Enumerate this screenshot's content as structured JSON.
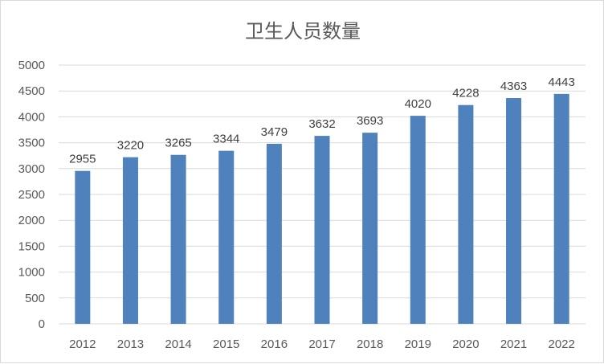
{
  "chart_data": {
    "type": "bar",
    "title": "卫生人员数量",
    "categories": [
      "2012",
      "2013",
      "2014",
      "2015",
      "2016",
      "2017",
      "2018",
      "2019",
      "2020",
      "2021",
      "2022"
    ],
    "values": [
      2955,
      3220,
      3265,
      3344,
      3479,
      3632,
      3693,
      4020,
      4228,
      4363,
      4443
    ],
    "ylim": [
      0,
      5000
    ],
    "yticks": [
      0,
      500,
      1000,
      1500,
      2000,
      2500,
      3000,
      3500,
      4000,
      4500,
      5000
    ],
    "grid": true,
    "legend": "none",
    "bar_color": "#4F81BD"
  }
}
